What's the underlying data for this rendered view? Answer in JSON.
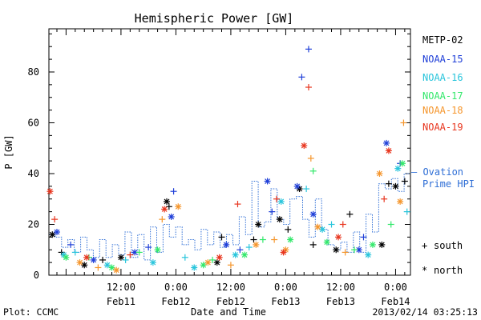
{
  "chart_data": {
    "type": "scatter",
    "title": "Hemispheric Power [GW]",
    "xlabel": "Date and Time",
    "ylabel": "P [GW]",
    "ylim": [
      0,
      97
    ],
    "y_ticks": [
      0,
      20,
      40,
      60,
      80
    ],
    "x_range_hours": "2013-02-10 20:15 to 2013-02-14 03:15 UT",
    "x_ticks": [
      {
        "label_time": "12:00",
        "label_date": "Feb11",
        "at": "2013-02-11 12:00"
      },
      {
        "label_time": "0:00",
        "label_date": "Feb12",
        "at": "2013-02-12 00:00"
      },
      {
        "label_time": "12:00",
        "label_date": "Feb12",
        "at": "2013-02-12 12:00"
      },
      {
        "label_time": "0:00",
        "label_date": "Feb13",
        "at": "2013-02-13 00:00"
      },
      {
        "label_time": "12:00",
        "label_date": "Feb13",
        "at": "2013-02-13 12:00"
      },
      {
        "label_time": "0:00",
        "label_date": "Feb14",
        "at": "2013-02-14 00:00"
      }
    ],
    "grid": false,
    "legend_position": "right",
    "series": [
      {
        "name": "METP-02",
        "color": "#000000",
        "north": [
          {
            "t": "2013-02-10 21:00",
            "p": 16
          },
          {
            "t": "2013-02-11 04:00",
            "p": 4
          },
          {
            "t": "2013-02-11 12:00",
            "p": 7
          },
          {
            "t": "2013-02-11 22:00",
            "p": 29
          },
          {
            "t": "2013-02-12 09:00",
            "p": 5
          },
          {
            "t": "2013-02-12 18:00",
            "p": 20
          },
          {
            "t": "2013-02-12 22:40",
            "p": 22
          },
          {
            "t": "2013-02-13 03:00",
            "p": 34
          },
          {
            "t": "2013-02-13 11:00",
            "p": 10
          },
          {
            "t": "2013-02-13 21:00",
            "p": 12
          },
          {
            "t": "2013-02-14 00:00",
            "p": 35
          }
        ],
        "south": [
          {
            "t": "2013-02-10 23:00",
            "p": 9
          },
          {
            "t": "2013-02-11 08:00",
            "p": 6
          },
          {
            "t": "2013-02-11 22:30",
            "p": 27
          },
          {
            "t": "2013-02-12 10:00",
            "p": 15
          },
          {
            "t": "2013-02-12 17:00",
            "p": 14
          },
          {
            "t": "2013-02-13 00:30",
            "p": 18
          },
          {
            "t": "2013-02-13 06:00",
            "p": 12
          },
          {
            "t": "2013-02-13 14:00",
            "p": 24
          },
          {
            "t": "2013-02-13 22:30",
            "p": 36
          },
          {
            "t": "2013-02-14 02:00",
            "p": 37
          }
        ]
      },
      {
        "name": "NOAA-15",
        "color": "#1f3fd8",
        "north": [
          {
            "t": "2013-02-10 22:00",
            "p": 17
          },
          {
            "t": "2013-02-11 06:00",
            "p": 6
          },
          {
            "t": "2013-02-11 15:00",
            "p": 9
          },
          {
            "t": "2013-02-11 23:00",
            "p": 23
          },
          {
            "t": "2013-02-12 11:00",
            "p": 12
          },
          {
            "t": "2013-02-12 20:00",
            "p": 37
          },
          {
            "t": "2013-02-13 02:30",
            "p": 35
          },
          {
            "t": "2013-02-13 06:00",
            "p": 24
          },
          {
            "t": "2013-02-13 16:00",
            "p": 10
          },
          {
            "t": "2013-02-13 22:00",
            "p": 52
          }
        ],
        "south": [
          {
            "t": "2013-02-11 01:00",
            "p": 12
          },
          {
            "t": "2013-02-11 18:00",
            "p": 11
          },
          {
            "t": "2013-02-11 23:30",
            "p": 33
          },
          {
            "t": "2013-02-12 14:00",
            "p": 10
          },
          {
            "t": "2013-02-12 21:00",
            "p": 25
          },
          {
            "t": "2013-02-13 03:30",
            "p": 78
          },
          {
            "t": "2013-02-13 05:00",
            "p": 89
          },
          {
            "t": "2013-02-13 17:00",
            "p": 15
          },
          {
            "t": "2013-02-14 01:00",
            "p": 44
          }
        ]
      },
      {
        "name": "NOAA-16",
        "color": "#29c5dc",
        "north": [
          {
            "t": "2013-02-10 23:30",
            "p": 8
          },
          {
            "t": "2013-02-11 09:00",
            "p": 4
          },
          {
            "t": "2013-02-11 19:00",
            "p": 5
          },
          {
            "t": "2013-02-12 04:00",
            "p": 3
          },
          {
            "t": "2013-02-12 13:00",
            "p": 8
          },
          {
            "t": "2013-02-12 23:00",
            "p": 29
          },
          {
            "t": "2013-02-13 08:00",
            "p": 18
          },
          {
            "t": "2013-02-13 18:00",
            "p": 8
          },
          {
            "t": "2013-02-14 00:30",
            "p": 42
          }
        ],
        "south": [
          {
            "t": "2013-02-11 02:00",
            "p": 9
          },
          {
            "t": "2013-02-11 13:00",
            "p": 6
          },
          {
            "t": "2013-02-12 02:00",
            "p": 7
          },
          {
            "t": "2013-02-12 16:00",
            "p": 11
          },
          {
            "t": "2013-02-13 04:30",
            "p": 34
          },
          {
            "t": "2013-02-13 10:00",
            "p": 20
          },
          {
            "t": "2013-02-14 02:30",
            "p": 25
          }
        ]
      },
      {
        "name": "NOAA-17",
        "color": "#33e86b",
        "north": [
          {
            "t": "2013-02-11 00:00",
            "p": 7
          },
          {
            "t": "2013-02-11 10:00",
            "p": 3
          },
          {
            "t": "2013-02-11 20:00",
            "p": 10
          },
          {
            "t": "2013-02-12 06:00",
            "p": 4
          },
          {
            "t": "2013-02-12 15:00",
            "p": 8
          },
          {
            "t": "2013-02-13 01:00",
            "p": 14
          },
          {
            "t": "2013-02-13 09:00",
            "p": 13
          },
          {
            "t": "2013-02-13 19:00",
            "p": 12
          },
          {
            "t": "2013-02-14 01:30",
            "p": 44
          }
        ],
        "south": [
          {
            "t": "2013-02-11 05:00",
            "p": 7
          },
          {
            "t": "2013-02-11 16:00",
            "p": 9
          },
          {
            "t": "2013-02-12 08:00",
            "p": 6
          },
          {
            "t": "2013-02-12 19:00",
            "p": 14
          },
          {
            "t": "2013-02-13 06:00",
            "p": 41
          },
          {
            "t": "2013-02-13 15:00",
            "p": 10
          },
          {
            "t": "2013-02-13 23:00",
            "p": 20
          }
        ]
      },
      {
        "name": "NOAA-18",
        "color": "#f5962d",
        "north": [
          {
            "t": "2013-02-11 03:00",
            "p": 5
          },
          {
            "t": "2013-02-11 11:00",
            "p": 2
          },
          {
            "t": "2013-02-12 00:30",
            "p": 27
          },
          {
            "t": "2013-02-12 07:00",
            "p": 5
          },
          {
            "t": "2013-02-12 17:30",
            "p": 12
          },
          {
            "t": "2013-02-13 00:00",
            "p": 10
          },
          {
            "t": "2013-02-13 07:00",
            "p": 19
          },
          {
            "t": "2013-02-13 20:30",
            "p": 40
          },
          {
            "t": "2013-02-14 01:00",
            "p": 29
          }
        ],
        "south": [
          {
            "t": "2013-02-11 07:00",
            "p": 3
          },
          {
            "t": "2013-02-11 21:00",
            "p": 22
          },
          {
            "t": "2013-02-12 12:00",
            "p": 4
          },
          {
            "t": "2013-02-12 21:30",
            "p": 14
          },
          {
            "t": "2013-02-13 05:30",
            "p": 46
          },
          {
            "t": "2013-02-13 13:00",
            "p": 9
          },
          {
            "t": "2013-02-14 01:45",
            "p": 60
          }
        ]
      },
      {
        "name": "NOAA-19",
        "color": "#e8361f",
        "north": [
          {
            "t": "2013-02-10 20:30",
            "p": 33
          },
          {
            "t": "2013-02-11 04:30",
            "p": 7
          },
          {
            "t": "2013-02-11 21:30",
            "p": 26
          },
          {
            "t": "2013-02-12 09:30",
            "p": 7
          },
          {
            "t": "2013-02-12 23:30",
            "p": 9
          },
          {
            "t": "2013-02-13 04:00",
            "p": 51
          },
          {
            "t": "2013-02-13 11:30",
            "p": 15
          },
          {
            "t": "2013-02-13 22:30",
            "p": 49
          }
        ],
        "south": [
          {
            "t": "2013-02-10 21:30",
            "p": 22
          },
          {
            "t": "2013-02-11 14:00",
            "p": 8
          },
          {
            "t": "2013-02-12 13:30",
            "p": 28
          },
          {
            "t": "2013-02-12 22:00",
            "p": 30
          },
          {
            "t": "2013-02-13 05:00",
            "p": 74
          },
          {
            "t": "2013-02-13 12:30",
            "p": 20
          },
          {
            "t": "2013-02-13 21:30",
            "p": 30
          }
        ]
      }
    ],
    "ovation": {
      "label_line1": "— Ovation",
      "label_line2": "Prime HPI",
      "color": "#2f6fd6",
      "values": [
        16,
        15,
        11,
        14,
        9,
        15,
        10,
        7,
        14,
        7,
        12,
        8,
        17,
        7,
        16,
        6,
        19,
        9,
        20,
        15,
        19,
        12,
        14,
        10,
        18,
        12,
        17,
        11,
        16,
        12,
        23,
        16,
        37,
        19,
        21,
        34,
        22,
        20,
        30,
        31,
        22,
        15,
        30,
        18,
        12,
        10,
        13,
        9,
        17,
        9,
        24,
        17,
        36,
        34,
        38,
        33,
        40
      ]
    },
    "marker_key": [
      {
        "symbol": "+",
        "label": "south"
      },
      {
        "symbol": "*",
        "label": "north"
      }
    ]
  },
  "footer": {
    "plot_credit": "Plot: CCMC",
    "timestamp": "2013/02/14 03:25:13"
  }
}
